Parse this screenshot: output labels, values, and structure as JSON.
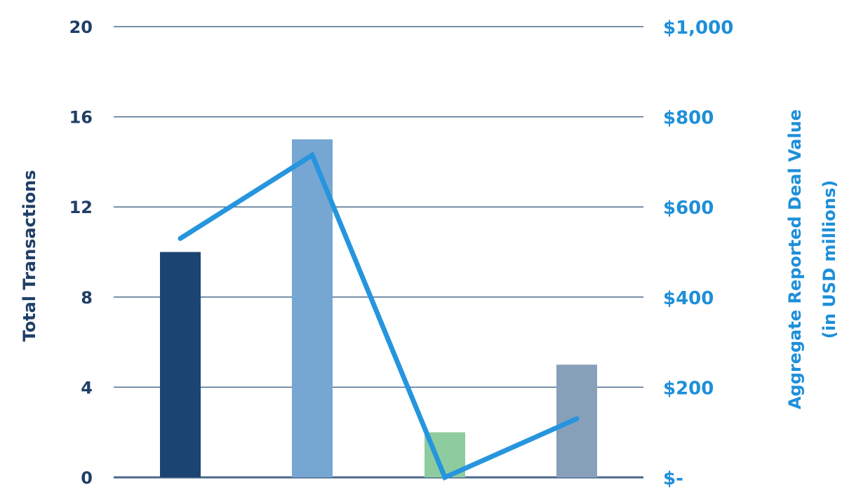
{
  "chart_data": {
    "type": "bar+line",
    "title": "",
    "xlabel": "",
    "categories": [
      "",
      "",
      "",
      ""
    ],
    "bars": {
      "axis": "left",
      "values": [
        10,
        15,
        2,
        5
      ],
      "colors": [
        "#1c4472",
        "#76a6d2",
        "#8ecc9f",
        "#87a0b9"
      ]
    },
    "line": {
      "axis": "right",
      "values": [
        530,
        715,
        0,
        130
      ],
      "color": "#2695de"
    },
    "left_axis": {
      "label": "Total Transactions",
      "range": [
        0,
        20
      ],
      "ticks": [
        "0",
        "4",
        "8",
        "12",
        "16",
        "20"
      ],
      "color": "#1f3f66"
    },
    "right_axis": {
      "label_line1": "Aggregate Reported Deal Value",
      "label_line2": "(in USD millions)",
      "range": [
        0,
        1000
      ],
      "ticks": [
        "$-",
        "$200",
        "$400",
        "$600",
        "$800",
        "$1,000"
      ],
      "color": "#1e8fd9"
    },
    "grid": true,
    "gridline_color": "#4a6a8c"
  }
}
